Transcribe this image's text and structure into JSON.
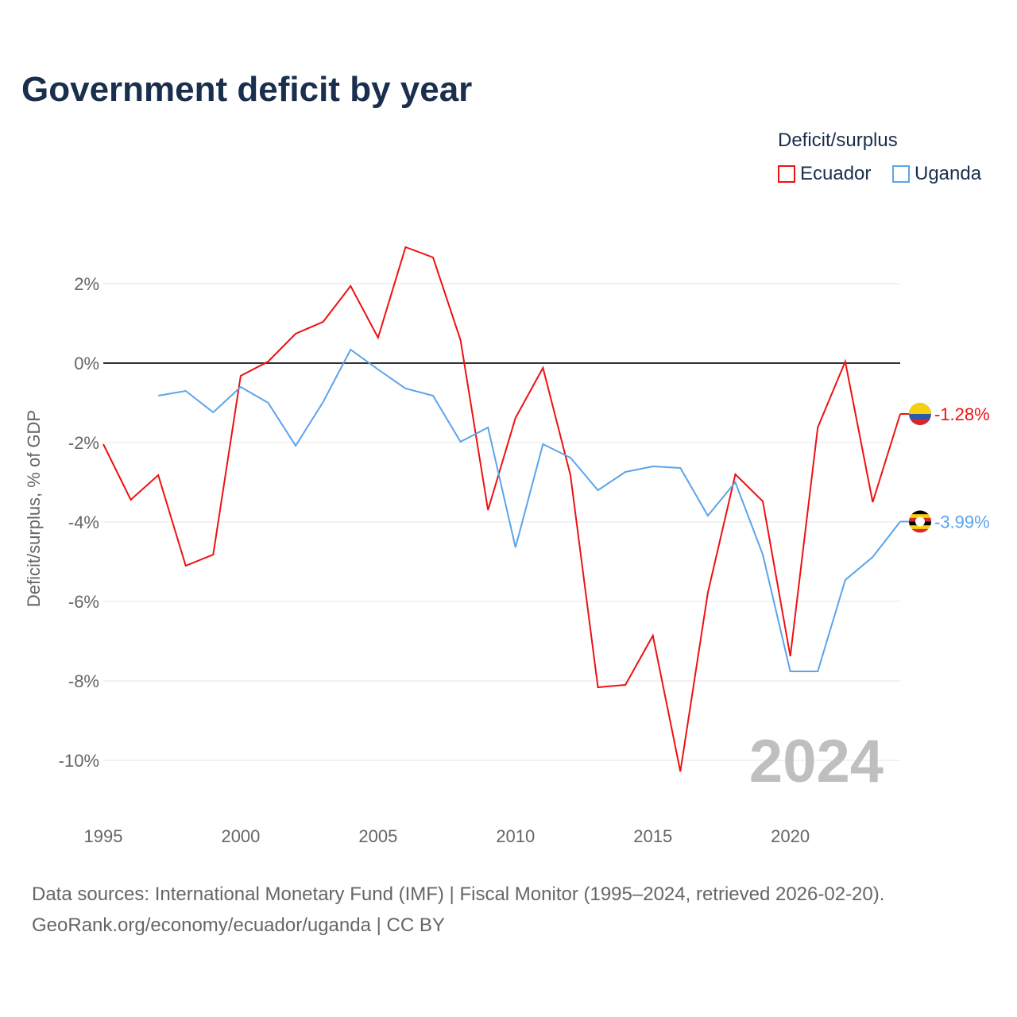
{
  "title": "Government deficit by year",
  "legend": {
    "title": "Deficit/surplus",
    "items": [
      "Ecuador",
      "Uganda"
    ]
  },
  "source_line1": "Data sources: International Monetary Fund (IMF) | Fiscal Monitor (1995–2024, retrieved 2026-02-20).",
  "source_line2": "GeoRank.org/economy/ecuador/uganda | CC BY",
  "chart_data": {
    "type": "line",
    "title": "Government deficit by year",
    "xlabel": "",
    "ylabel": "Deficit/surplus, % of GDP",
    "xlim": [
      1995,
      2024
    ],
    "ylim": [
      -11,
      3.5
    ],
    "x_ticks": [
      1995,
      2000,
      2005,
      2010,
      2015,
      2020
    ],
    "y_ticks": [
      2,
      0,
      -2,
      -4,
      -6,
      -8,
      -10
    ],
    "y_tick_labels": [
      "2%",
      "0%",
      "-2%",
      "-4%",
      "-6%",
      "-8%",
      "-10%"
    ],
    "watermark_year": "2024",
    "series": [
      {
        "name": "Ecuador",
        "color": "#ee1111",
        "start": 1995,
        "end_label": "-1.28%",
        "values": [
          -2.04,
          -3.44,
          -2.82,
          -5.1,
          -4.82,
          -0.32,
          0.04,
          0.74,
          1.04,
          1.94,
          0.64,
          2.92,
          2.66,
          0.58,
          -3.7,
          -1.38,
          -0.12,
          -2.82,
          -8.16,
          -8.1,
          -6.86,
          -10.28,
          -5.78,
          -2.8,
          -3.48,
          -7.38,
          -1.62,
          0.04,
          -3.5,
          -1.28
        ]
      },
      {
        "name": "Uganda",
        "color": "#5ba4ea",
        "start": 1997,
        "end_label": "-3.99%",
        "values": [
          -0.82,
          -0.7,
          -1.24,
          -0.6,
          -1.0,
          -2.08,
          -0.98,
          0.34,
          -0.16,
          -0.64,
          -0.82,
          -1.98,
          -1.62,
          -4.64,
          -2.04,
          -2.38,
          -3.2,
          -2.74,
          -2.6,
          -2.64,
          -3.84,
          -3.0,
          -4.82,
          -7.76,
          -7.76,
          -5.46,
          -4.88,
          -3.99
        ]
      }
    ]
  }
}
